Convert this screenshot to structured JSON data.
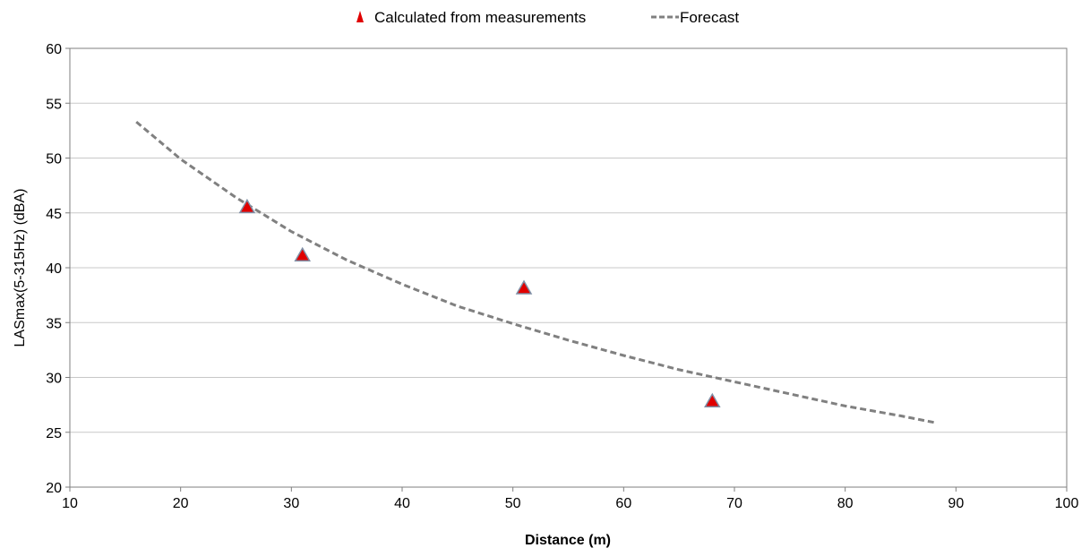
{
  "chart_data": {
    "type": "scatter",
    "title": "",
    "xlabel": "Distance (m)",
    "ylabel": "LASmax(5-315Hz)  (dBA)",
    "xlim": [
      10,
      100
    ],
    "ylim": [
      20,
      60
    ],
    "x_ticks": [
      10,
      20,
      30,
      40,
      50,
      60,
      70,
      80,
      90,
      100
    ],
    "y_ticks": [
      20,
      25,
      30,
      35,
      40,
      45,
      50,
      55,
      60
    ],
    "grid": "horizontal",
    "legend_position": "top",
    "series": [
      {
        "name": "Calculated from measurements",
        "kind": "markers",
        "marker": "triangle",
        "color": "#e00000",
        "edge_color": "#7f8fa6",
        "points": [
          {
            "x": 26,
            "y": 45.6
          },
          {
            "x": 31,
            "y": 41.2
          },
          {
            "x": 51,
            "y": 38.2
          },
          {
            "x": 68,
            "y": 27.9
          }
        ]
      },
      {
        "name": "Forecast",
        "kind": "line",
        "style": "dashed",
        "color": "#808080",
        "points": [
          {
            "x": 16,
            "y": 53.3
          },
          {
            "x": 20,
            "y": 49.9
          },
          {
            "x": 25,
            "y": 46.4
          },
          {
            "x": 30,
            "y": 43.3
          },
          {
            "x": 35,
            "y": 40.7
          },
          {
            "x": 40,
            "y": 38.5
          },
          {
            "x": 45,
            "y": 36.5
          },
          {
            "x": 50,
            "y": 34.9
          },
          {
            "x": 55,
            "y": 33.4
          },
          {
            "x": 60,
            "y": 32.0
          },
          {
            "x": 65,
            "y": 30.7
          },
          {
            "x": 70,
            "y": 29.6
          },
          {
            "x": 75,
            "y": 28.5
          },
          {
            "x": 80,
            "y": 27.4
          },
          {
            "x": 85,
            "y": 26.5
          },
          {
            "x": 88,
            "y": 25.9
          }
        ]
      }
    ]
  }
}
